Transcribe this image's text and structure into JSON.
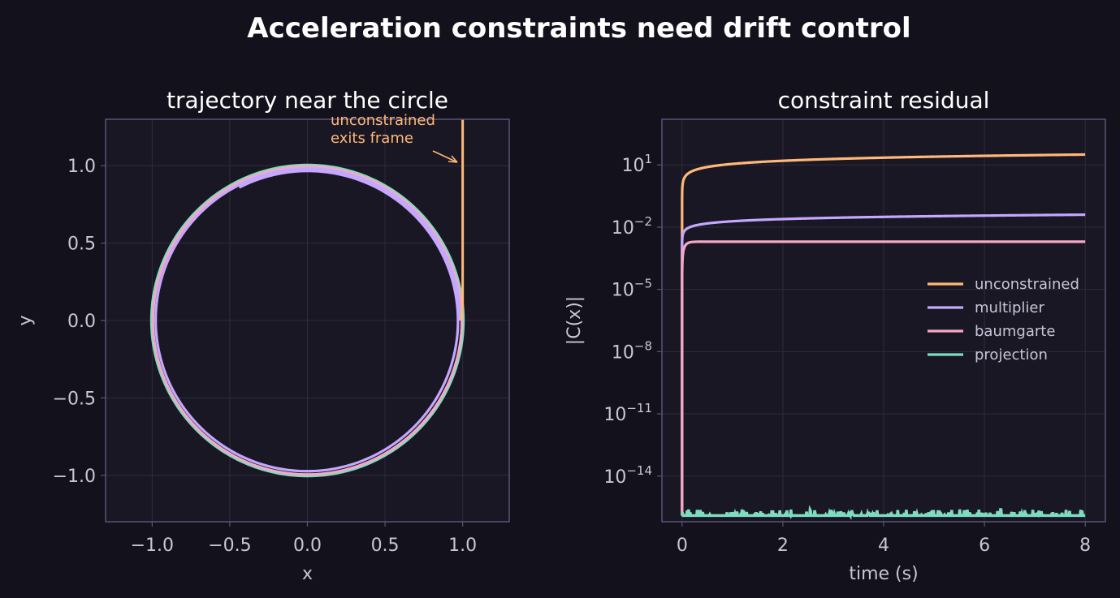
{
  "figure": {
    "suptitle": "Acceleration constraints need drift control",
    "colors": {
      "background": "#13111b",
      "panel": "#1a1724",
      "frame": "#5a5478",
      "grid": "#2e2a40",
      "text": "#ffffff",
      "tick_text": "#c9c5d8"
    }
  },
  "chart_data": [
    {
      "type": "line",
      "title": "trajectory near the circle",
      "xlabel": "x",
      "ylabel": "y",
      "xlim": [
        -1.3,
        1.3
      ],
      "ylim": [
        -1.3,
        1.3
      ],
      "xticks": [
        -1.0,
        -0.5,
        0.0,
        0.5,
        1.0
      ],
      "yticks": [
        -1.0,
        -0.5,
        0.0,
        0.5,
        1.0
      ],
      "xtick_labels": [
        "−1.0",
        "−0.5",
        "0.0",
        "0.5",
        "1.0"
      ],
      "ytick_labels": [
        "−1.0",
        "−0.5",
        "0.0",
        "0.5",
        "1.0"
      ],
      "grid": true,
      "annotation": {
        "text_lines": [
          "unconstrained",
          "exits frame"
        ],
        "target": [
          1.0,
          1.02
        ],
        "color": "#ffb878"
      },
      "series": [
        {
          "name": "projection",
          "color": "#7edcc0",
          "shape": "circle",
          "radius": 1.0
        },
        {
          "name": "baumgarte",
          "color": "#f5a8c5",
          "shape": "circle",
          "radius": 0.995
        },
        {
          "name": "multiplier",
          "color": "#c4a7ff",
          "shape": "spiral",
          "r_start": 0.985,
          "r_end": 0.965,
          "end_point": [
            -0.44,
            0.86
          ]
        },
        {
          "name": "unconstrained",
          "color": "#ffb878",
          "shape": "escape",
          "x": [
            0.99,
            1.0,
            1.0
          ],
          "y": [
            0.0,
            0.1,
            1.3
          ]
        }
      ]
    },
    {
      "type": "line",
      "title": "constraint residual",
      "xlabel": "time (s)",
      "ylabel": "|C(x)|",
      "yscale": "log",
      "xlim": [
        -0.4,
        8.4
      ],
      "ylim_log10": [
        -16.2,
        3.2
      ],
      "xticks": [
        0,
        2,
        4,
        6,
        8
      ],
      "xtick_labels": [
        "0",
        "2",
        "4",
        "6",
        "8"
      ],
      "yticks_log10": [
        1,
        -2,
        -5,
        -8,
        -11,
        -14
      ],
      "ytick_labels": [
        {
          "base": "10",
          "exp": "1"
        },
        {
          "base": "10",
          "exp": "−2"
        },
        {
          "base": "10",
          "exp": "−5"
        },
        {
          "base": "10",
          "exp": "−8"
        },
        {
          "base": "10",
          "exp": "−11"
        },
        {
          "base": "10",
          "exp": "−14"
        }
      ],
      "grid": true,
      "legend": {
        "placement": "center-right",
        "items": [
          {
            "label": "unconstrained",
            "color": "#ffb878"
          },
          {
            "label": "multiplier",
            "color": "#c4a7ff"
          },
          {
            "label": "baumgarte",
            "color": "#f5a8c5"
          },
          {
            "label": "projection",
            "color": "#7edcc0"
          }
        ]
      },
      "series": [
        {
          "name": "unconstrained",
          "color": "#ffb878",
          "t_end": 8.0,
          "log10_at_t_end": 1.5,
          "growth_power": 0.5,
          "start_log10": -15.9
        },
        {
          "name": "multiplier",
          "color": "#c4a7ff",
          "t_end": 8.0,
          "log10_at_t_end": -1.4,
          "growth_power": 0.35,
          "start_log10": -15.9
        },
        {
          "name": "baumgarte",
          "color": "#f5a8c5",
          "t_end": 8.0,
          "log10_at_t_end": -2.7,
          "plateau_log10": -2.7,
          "start_log10": -15.9
        },
        {
          "name": "projection",
          "color": "#7edcc0",
          "t_end": 8.0,
          "baseline_log10": -15.9,
          "noise_max_log10": -15.6
        }
      ]
    }
  ]
}
